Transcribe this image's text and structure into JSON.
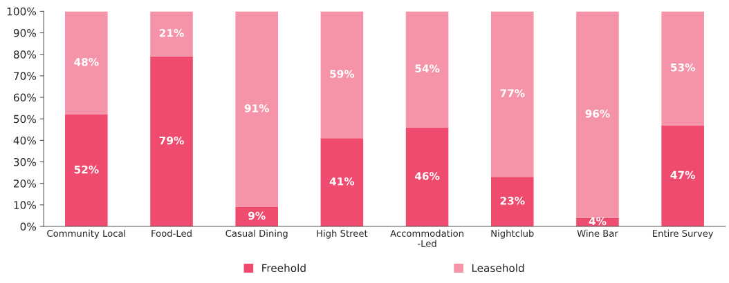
{
  "chart_data": {
    "type": "bar",
    "stacked": true,
    "categories": [
      "Community Local",
      "Food-Led",
      "Casual Dining",
      "High Street",
      "Accommodation\n-Led",
      "Nightclub",
      "Wine Bar",
      "Entire Survey"
    ],
    "series": [
      {
        "name": "Freehold",
        "color": "#ef4b6f",
        "values": [
          52,
          79,
          9,
          41,
          46,
          23,
          4,
          47
        ],
        "value_labels": [
          "52%",
          "79%",
          "9%",
          "41%",
          "46%",
          "23%",
          "4%",
          "47%"
        ]
      },
      {
        "name": "Leasehold",
        "color": "#f594a8",
        "values": [
          48,
          21,
          91,
          59,
          54,
          77,
          96,
          53
        ],
        "value_labels": [
          "48%",
          "21%",
          "91%",
          "59%",
          "54%",
          "77%",
          "96%",
          "53%"
        ]
      }
    ],
    "ylim": [
      0,
      100
    ],
    "yticks": [
      {
        "value": 0,
        "label": "0%"
      },
      {
        "value": 10,
        "label": "10%"
      },
      {
        "value": 20,
        "label": "20%"
      },
      {
        "value": 30,
        "label": "30%"
      },
      {
        "value": 40,
        "label": "40%"
      },
      {
        "value": 50,
        "label": "50%"
      },
      {
        "value": 60,
        "label": "60%"
      },
      {
        "value": 70,
        "label": "70%"
      },
      {
        "value": 80,
        "label": "80%"
      },
      {
        "value": 90,
        "label": "90%"
      },
      {
        "value": 100,
        "label": "100%"
      }
    ],
    "grid": false,
    "legend": "bottom"
  }
}
